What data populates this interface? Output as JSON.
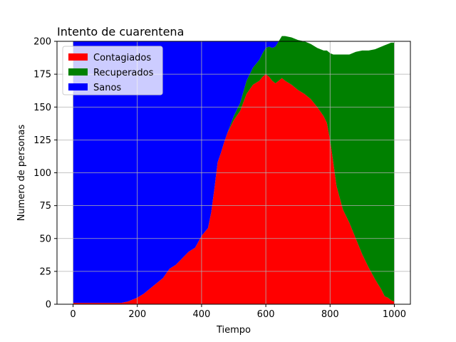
{
  "chart_data": {
    "type": "area",
    "title": "Intento de cuarentena",
    "xlabel": "Tiempo",
    "ylabel": "Numero de personas",
    "xlim": [
      -50,
      1050
    ],
    "ylim": [
      0,
      200
    ],
    "xticks": [
      0,
      200,
      400,
      600,
      800,
      1000
    ],
    "yticks": [
      0,
      25,
      50,
      75,
      100,
      125,
      150,
      175,
      200
    ],
    "grid": true,
    "legend_position": "top-left",
    "stacked": true,
    "x": [
      0,
      50,
      100,
      150,
      170,
      190,
      200,
      220,
      240,
      260,
      280,
      300,
      320,
      340,
      360,
      380,
      400,
      410,
      420,
      430,
      440,
      450,
      460,
      470,
      480,
      500,
      520,
      540,
      560,
      580,
      590,
      600,
      610,
      620,
      630,
      640,
      650,
      660,
      680,
      700,
      720,
      740,
      760,
      780,
      790,
      800,
      810,
      820,
      840,
      860,
      880,
      900,
      920,
      940,
      960,
      970,
      980,
      990,
      1000
    ],
    "series": [
      {
        "name": "Contagiados",
        "color": "#ff0000",
        "values": [
          1,
          1,
          1,
          1,
          2,
          4,
          5,
          8,
          12,
          16,
          20,
          27,
          30,
          35,
          40,
          43,
          52,
          55,
          58,
          70,
          88,
          108,
          115,
          123,
          130,
          140,
          147,
          160,
          167,
          170,
          173,
          175,
          173,
          170,
          168,
          170,
          172,
          170,
          167,
          163,
          160,
          156,
          150,
          143,
          138,
          125,
          108,
          90,
          72,
          62,
          50,
          38,
          28,
          19,
          11,
          6,
          5,
          3,
          2
        ]
      },
      {
        "name": "Recuperados",
        "color": "#008000",
        "values": [
          0,
          0,
          0,
          0,
          0,
          0,
          0,
          0,
          0,
          0,
          0,
          0,
          0,
          0,
          0,
          0,
          0,
          0,
          0,
          0,
          0,
          0,
          0,
          0,
          0,
          3,
          6,
          10,
          13,
          16,
          18,
          20,
          23,
          25,
          28,
          30,
          32,
          34,
          36,
          38,
          40,
          42,
          45,
          50,
          55,
          66,
          82,
          100,
          118,
          128,
          142,
          155,
          165,
          175,
          185,
          191,
          193,
          196,
          197
        ]
      },
      {
        "name": "Sanos",
        "color": "#0000ff",
        "values": [
          199,
          199,
          199,
          199,
          198,
          196,
          195,
          192,
          188,
          184,
          180,
          173,
          170,
          165,
          160,
          157,
          148,
          145,
          142,
          130,
          112,
          92,
          85,
          77,
          70,
          57,
          47,
          30,
          20,
          14,
          9,
          5,
          4,
          5,
          4,
          0,
          0,
          0,
          0,
          0,
          0,
          0,
          0,
          0,
          0,
          0,
          0,
          0,
          0,
          0,
          0,
          0,
          0,
          0,
          0,
          0,
          0,
          0,
          0
        ]
      }
    ]
  }
}
